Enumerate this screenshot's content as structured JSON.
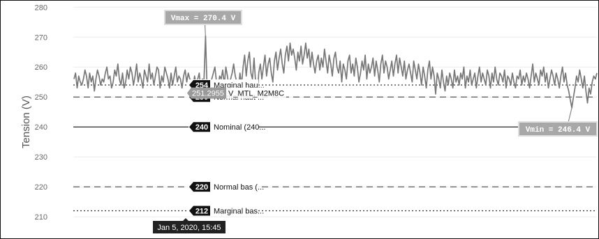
{
  "chart_data": {
    "type": "line",
    "xlabel": "",
    "ylabel": "Tension (V)",
    "ylim": [
      207,
      281
    ],
    "yticks": [
      210,
      220,
      230,
      240,
      250,
      260,
      270,
      280
    ],
    "grid": true,
    "series": [
      {
        "color": "#777777",
        "values": [
          256,
          258,
          253,
          257,
          255,
          254,
          256,
          259,
          257,
          253,
          258,
          255,
          257,
          252,
          256,
          259,
          257,
          254,
          256,
          255,
          258,
          260,
          256,
          257,
          253,
          255,
          259,
          257,
          261,
          256,
          254,
          258,
          253,
          255,
          259,
          256,
          260,
          258,
          254,
          257,
          261,
          255,
          258,
          256,
          253,
          259,
          257,
          255,
          261,
          256,
          258,
          254,
          257,
          260,
          259,
          253,
          257,
          255,
          260,
          258,
          256,
          253,
          258,
          254,
          257,
          260,
          255,
          257,
          256,
          253,
          257,
          259,
          255,
          258,
          256,
          255,
          253,
          257,
          254,
          256,
          258,
          252,
          256,
          255,
          270.4,
          253,
          251,
          254,
          256,
          258,
          260,
          255,
          253,
          257,
          256,
          259,
          254,
          260,
          257,
          253,
          256,
          258,
          261,
          257,
          255,
          252,
          258,
          254,
          260,
          264,
          257,
          262,
          265,
          258,
          256,
          263,
          255,
          250,
          258,
          261,
          256,
          260,
          264,
          257,
          261,
          263,
          258,
          255,
          262,
          265,
          259,
          263,
          266,
          261,
          258,
          264,
          267,
          262,
          268,
          264,
          266,
          263,
          259,
          265,
          262,
          267,
          261,
          264,
          268,
          263,
          266,
          260,
          265,
          261,
          258,
          262,
          264,
          259,
          263,
          260,
          266,
          262,
          258,
          264,
          261,
          257,
          263,
          265,
          260,
          258,
          262,
          255,
          261,
          259,
          256,
          262,
          264,
          258,
          261,
          257,
          263,
          260,
          255,
          258,
          262,
          259,
          264,
          256,
          261,
          258,
          260,
          263,
          257,
          262,
          259,
          255,
          261,
          264,
          258,
          262,
          260,
          256,
          259,
          262,
          257,
          261,
          264,
          258,
          263,
          260,
          257,
          262,
          256,
          259,
          261,
          258,
          255,
          262,
          259,
          256,
          261,
          258,
          254,
          260,
          257,
          253,
          259,
          262,
          256,
          260,
          257,
          251,
          258,
          256,
          253,
          259,
          255,
          252,
          257,
          254,
          258,
          256,
          253,
          259,
          255,
          257,
          254,
          258,
          256,
          260,
          253,
          257,
          255,
          259,
          254,
          256,
          258,
          253,
          257,
          260,
          255,
          258,
          256,
          254,
          259,
          257,
          253,
          258,
          255,
          260,
          256,
          254,
          258,
          257,
          255,
          259,
          253,
          257,
          256,
          254,
          258,
          255,
          253,
          257,
          256,
          259,
          254,
          257,
          255,
          258,
          256,
          253,
          257,
          261,
          255,
          258,
          256,
          254,
          259,
          257,
          260,
          255,
          258,
          253,
          256,
          259,
          257,
          254,
          258,
          256,
          253,
          257,
          260,
          255,
          258,
          254,
          252,
          249,
          246.4,
          250,
          253,
          257,
          255,
          259,
          256,
          253,
          257,
          252,
          248,
          253,
          251,
          255,
          257,
          256,
          258
        ]
      }
    ],
    "references": [
      {
        "value": 254,
        "label": "Marginal hau...",
        "style": "dotted",
        "color": "#333333"
      },
      {
        "value": 250,
        "label": "Normal haut ...",
        "style": "dashed",
        "color": "#555555"
      },
      {
        "value": 240,
        "label": "Nominal (240...",
        "style": "solid",
        "color": "#111111"
      },
      {
        "value": 220,
        "label": "Normal bas (...",
        "style": "dashed",
        "color": "#555555"
      },
      {
        "value": 212,
        "label": "Marginal bas...",
        "style": "dotted",
        "color": "#333333"
      }
    ],
    "annotations": [
      {
        "text": "Vmax = 270.4 V",
        "value": 270.4
      },
      {
        "text": "Vmin = 246.4 V",
        "value": 246.4
      }
    ],
    "tooltip": {
      "value": "251.2955",
      "series_label": "V_MTL_M2M8C",
      "x_label": "Jan 5, 2020, 15:45"
    }
  }
}
